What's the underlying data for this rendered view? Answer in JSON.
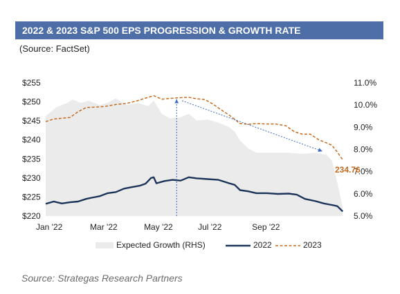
{
  "title": "2022 & 2023 S&P 500 EPS PROGRESSION & GROWTH RATE",
  "subtitle": "(Source: FactSet)",
  "source_note": "Source: Strategas Research Partners",
  "colors": {
    "title_bg": "#4d6ea6",
    "eps_2022": "#1b3358",
    "eps_2023": "#c46a1e",
    "growth_area": "#ebebeb",
    "arrow": "#3d6cc4"
  },
  "chart_data": {
    "type": "line",
    "x_tick_labels": [
      "Jan '22",
      "Mar '22",
      "May '22",
      "Jul '22",
      "Sep '22"
    ],
    "x_ticks_month": [
      0,
      2,
      4,
      6,
      8
    ],
    "x_range_month": [
      0,
      11.2
    ],
    "y_left_ticks": [
      "$255",
      "$250",
      "$245",
      "$240",
      "$235",
      "$230",
      "$225",
      "$220"
    ],
    "y_left_range": [
      220,
      255
    ],
    "y_right_ticks": [
      "11.0%",
      "10.0%",
      "9.0%",
      "8.0%",
      "7.0%",
      "6.0%",
      "5.0%"
    ],
    "y_right_range": [
      5.0,
      11.0
    ],
    "legend": [
      "Expected Growth (RHS)",
      "2022",
      "2023"
    ],
    "annotations": [
      {
        "text": "234.76"
      }
    ],
    "series": [
      {
        "name": "Expected Growth (RHS)",
        "axis": "right",
        "kind": "area",
        "x": [
          0,
          0.4,
          0.8,
          1.0,
          1.3,
          1.6,
          2.0,
          2.3,
          2.6,
          3.0,
          3.4,
          3.8,
          4.0,
          4.3,
          4.6,
          5.0,
          5.3,
          5.6,
          6.0,
          6.4,
          6.8,
          7.0,
          7.2,
          7.5,
          7.8,
          8.0,
          8.5,
          9.0,
          9.5,
          10.0,
          10.4,
          10.6,
          10.8,
          11.0
        ],
        "y": [
          9.5,
          9.9,
          10.1,
          10.25,
          10.1,
          10.2,
          10.0,
          10.1,
          10.3,
          10.0,
          10.1,
          9.95,
          10.2,
          9.6,
          9.4,
          9.45,
          9.6,
          9.3,
          9.35,
          9.2,
          9.0,
          8.8,
          8.4,
          8.05,
          7.85,
          7.85,
          7.85,
          7.85,
          7.8,
          7.85,
          7.75,
          7.5,
          6.5,
          5.4
        ]
      },
      {
        "name": "2022",
        "axis": "left",
        "x": [
          0,
          0.3,
          0.6,
          0.9,
          1.2,
          1.5,
          1.7,
          2.0,
          2.3,
          2.6,
          2.9,
          3.2,
          3.5,
          3.7,
          3.9,
          4.0,
          4.1,
          4.2,
          4.4,
          4.7,
          5.0,
          5.3,
          5.6,
          6.0,
          6.4,
          6.8,
          7.0,
          7.2,
          7.5,
          7.8,
          8.2,
          8.6,
          9.0,
          9.3,
          9.6,
          10.0,
          10.3,
          10.6,
          10.8,
          11.0
        ],
        "y": [
          223.2,
          223.8,
          223.3,
          223.6,
          223.8,
          224.5,
          224.8,
          225.2,
          226.0,
          226.3,
          227.2,
          227.6,
          228.0,
          228.5,
          230.0,
          230.2,
          228.6,
          228.8,
          229.2,
          229.5,
          229.3,
          230.2,
          229.9,
          229.7,
          229.5,
          228.6,
          228.2,
          226.8,
          226.5,
          226.0,
          226.0,
          225.8,
          225.9,
          225.6,
          224.5,
          223.9,
          223.3,
          222.9,
          222.6,
          221.2
        ]
      },
      {
        "name": "2023",
        "axis": "left",
        "x": [
          0,
          0.3,
          0.6,
          0.9,
          1.2,
          1.5,
          1.8,
          2.2,
          2.6,
          3.0,
          3.4,
          3.7,
          4.0,
          4.3,
          4.6,
          5.0,
          5.3,
          5.6,
          5.9,
          6.2,
          6.5,
          6.8,
          7.0,
          7.2,
          7.5,
          7.8,
          8.1,
          8.5,
          8.9,
          9.2,
          9.5,
          9.8,
          10.1,
          10.4,
          10.6,
          10.8,
          11.0
        ],
        "y": [
          244.8,
          245.5,
          245.7,
          245.9,
          247.4,
          248.5,
          248.6,
          248.8,
          249.3,
          249.6,
          250.3,
          251.0,
          251.6,
          250.7,
          250.9,
          251.1,
          251.2,
          250.8,
          250.6,
          249.4,
          247.9,
          246.5,
          245.4,
          244.3,
          244.1,
          244.3,
          244.2,
          244.2,
          243.7,
          242.2,
          241.5,
          241.5,
          240.1,
          239.2,
          238.6,
          236.8,
          234.76
        ]
      }
    ],
    "arrows": [
      {
        "from": [
          4.85,
          220
        ],
        "to": [
          4.85,
          250.7
        ]
      },
      {
        "from": [
          5.05,
          250.3
        ],
        "to": [
          10.25,
          237.0
        ]
      }
    ]
  }
}
